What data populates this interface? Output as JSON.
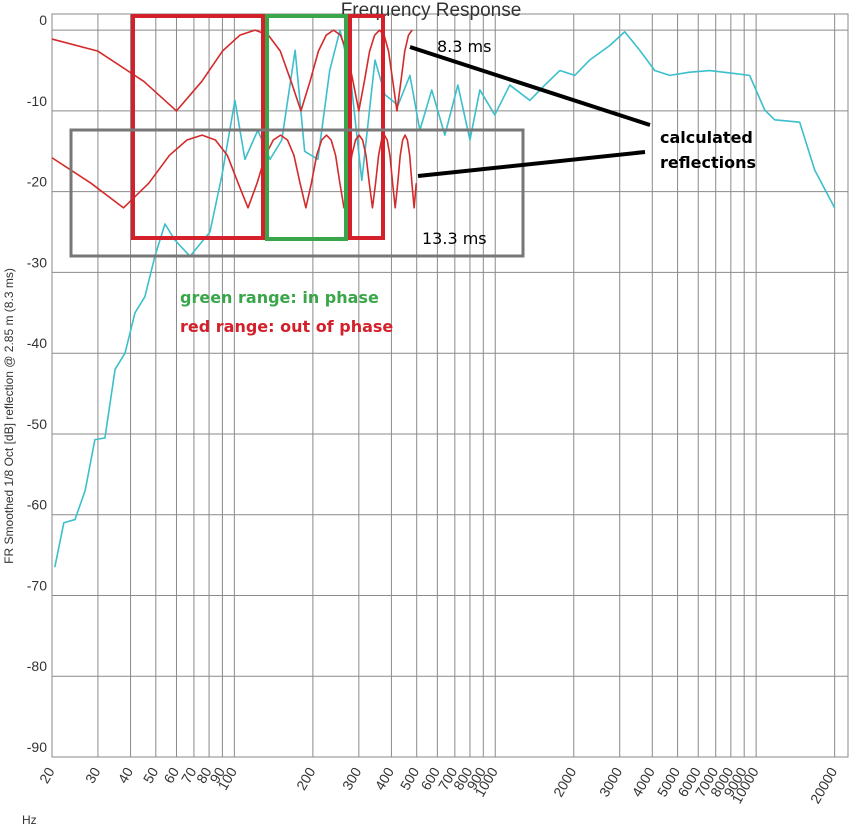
{
  "chart_data": {
    "type": "line",
    "title": "Frequency Response",
    "y_label": "FR Smoothed 1/8 Oct [dB]   reflection @ 2.85 m (8.3 ms)",
    "x_label": "Hz",
    "log_x": true,
    "grid": true,
    "xlim": [
      20,
      22500
    ],
    "ylim": [
      -90,
      2
    ],
    "xticks": [
      20,
      30,
      40,
      50,
      60,
      70,
      80,
      90,
      100,
      200,
      300,
      400,
      500,
      600,
      700,
      800,
      900,
      1000,
      2000,
      3000,
      4000,
      5000,
      6000,
      7000,
      8000,
      9000,
      10000,
      20000
    ],
    "yticks": [
      0,
      -10,
      -20,
      -30,
      -40,
      -50,
      -60,
      -70,
      -80,
      -90
    ],
    "series": [
      {
        "color": "#3bbfcc",
        "x": [
          20.5,
          22.2,
          24.5,
          26.8,
          29.2,
          31.9,
          34.9,
          38.1,
          41.6,
          45.4,
          49.6,
          54.2,
          59.2,
          67.6,
          80.6,
          89.6,
          100.5,
          109.8,
          123,
          137,
          152,
          171,
          186,
          209,
          232,
          254,
          277,
          308,
          346,
          378,
          424,
          471,
          514,
          571,
          641,
          719,
          800,
          873,
          996,
          1137,
          1357,
          1549,
          1768,
          2018,
          2302,
          2749,
          3135,
          3583,
          4087,
          4667,
          5563,
          6636,
          7925,
          9443,
          10790,
          11780,
          14690,
          16760,
          20000
        ],
        "values": [
          -66.5,
          -61,
          -60.6,
          -57,
          -50.7,
          -50.5,
          -42,
          -40,
          -35,
          -33,
          -28,
          -24,
          -26,
          -28,
          -25,
          -18,
          -8.7,
          -16,
          -12.4,
          -16,
          -13.6,
          -2.5,
          -15,
          -16,
          -5,
          0,
          -5,
          -18.6,
          -3.7,
          -8,
          -9.3,
          -5.6,
          -12.4,
          -7.4,
          -13,
          -6.8,
          -13.6,
          -7.4,
          -10.5,
          -6.8,
          -8.7,
          -6.8,
          -5,
          -5.6,
          -3.7,
          -1.9,
          -0.2,
          -2.5,
          -5,
          -5.6,
          -5.2,
          -5,
          -5.3,
          -5.6,
          -9.9,
          -11.1,
          -11.4,
          -17.3,
          -22
        ]
      },
      {
        "color": "#d42a2a",
        "x": [
          20,
          30,
          45,
          60,
          75,
          90,
          105,
          120,
          135,
          150,
          165,
          180,
          195,
          210,
          225,
          240,
          255,
          270,
          285,
          300,
          315,
          330,
          345,
          360,
          375,
          390,
          405,
          420,
          435,
          450,
          465,
          480
        ],
        "values": [
          -1.1,
          -2.6,
          -6.35,
          -10,
          -6.35,
          -2.6,
          -0.62,
          0,
          -0.62,
          -2.6,
          -6.35,
          -10,
          -6.35,
          -2.6,
          -0.62,
          0,
          -0.62,
          -2.6,
          -6.35,
          -10,
          -6.35,
          -2.6,
          -0.62,
          0,
          -0.62,
          -2.6,
          -6.35,
          -10,
          -6.35,
          -2.6,
          -0.62,
          0
        ]
      },
      {
        "color": "#d42a2a",
        "x": [
          20,
          28.2,
          37.6,
          47.0,
          56.4,
          65.8,
          75.2,
          84.6,
          94.0,
          103.4,
          112.8,
          122.2,
          131.6,
          141.0,
          150.4,
          159.8,
          169.2,
          178.6,
          188.0,
          197.4,
          206.8,
          216.2,
          225.6,
          235.0,
          244.4,
          253.8,
          263.2,
          272.6,
          282.0,
          291.4,
          300.8,
          310.2,
          319.6,
          329.0,
          338.4,
          347.8,
          357.2,
          366.6,
          376.0,
          385.4,
          394.8,
          404.2,
          413.6,
          423.0,
          432.4,
          441.8,
          451.2,
          460.6,
          470.0,
          479.3,
          488.7,
          498.1
        ],
        "values": [
          -15.8,
          -18.95,
          -22,
          -18.95,
          -15.5,
          -13.6,
          -13,
          -13.6,
          -15.5,
          -18.95,
          -22,
          -18.95,
          -15.5,
          -13.6,
          -13,
          -13.6,
          -15.5,
          -18.95,
          -22,
          -18.95,
          -15.5,
          -13.6,
          -13,
          -13.6,
          -15.5,
          -18.95,
          -22,
          -18.95,
          -15.5,
          -13.6,
          -13,
          -13.6,
          -15.5,
          -18.95,
          -22,
          -18.95,
          -15.5,
          -13.6,
          -13,
          -13.6,
          -15.5,
          -18.95,
          -22,
          -18.95,
          -15.5,
          -13.6,
          -13,
          -13.6,
          -15.5,
          -18.95,
          -22,
          -18.95
        ]
      }
    ],
    "annotations": [
      "8.3 ms",
      "13.3 ms",
      "calculated",
      "reflections",
      "green range: in phase",
      "red range: out of phase"
    ]
  }
}
